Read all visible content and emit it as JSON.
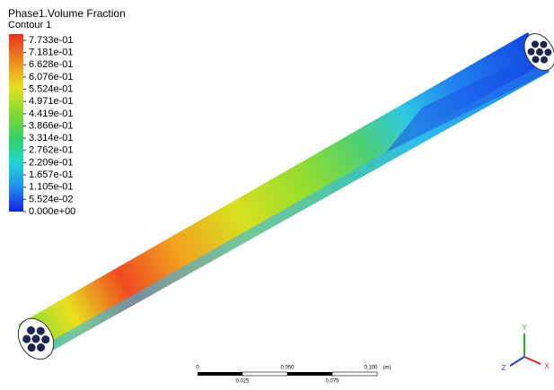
{
  "title": "Phase1.Volume Fraction",
  "subtitle": "Contour 1",
  "legend": {
    "labels": [
      "7.733e-01",
      "7.181e-01",
      "6.628e-01",
      "6.076e-01",
      "5.524e-01",
      "4.971e-01",
      "4.419e-01",
      "3.866e-01",
      "3.314e-01",
      "2.762e-01",
      "2.209e-01",
      "1.657e-01",
      "1.105e-01",
      "5.524e-02",
      "0.000e+00"
    ]
  },
  "scale_bar": {
    "labels": [
      "0",
      "0.050",
      "0.100",
      "(m)"
    ],
    "sublabels": [
      "0.025",
      "0.075"
    ]
  },
  "triad": {
    "labels": [
      "Y",
      "Z",
      "X"
    ]
  }
}
